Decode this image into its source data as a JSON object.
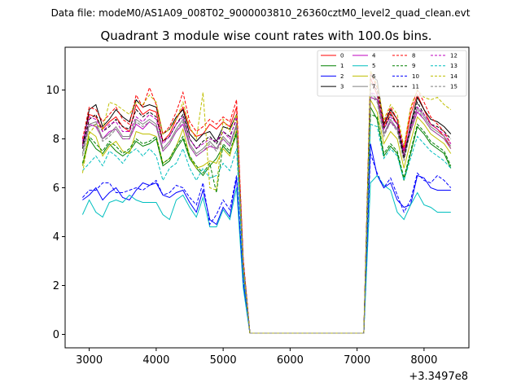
{
  "header": {
    "datafile": "Data file: modeM0/AS1A09_008T02_9000003810_26360cztM0_level2_quad_clean.evt",
    "title": "Quadrant 3 module wise count rates with 100.0s bins.",
    "offset": "+3.3497e8"
  },
  "chart_data": {
    "type": "line",
    "title": "Quadrant 3 module wise count rates with 100.0s bins.",
    "xlabel": "",
    "ylabel": "",
    "x_offset_label": "+3.3497e8",
    "xlim": [
      2640,
      8670
    ],
    "ylim": [
      -0.55,
      11.75
    ],
    "xticks": [
      3000,
      4000,
      5000,
      6000,
      7000,
      8000
    ],
    "yticks": [
      0,
      2,
      4,
      6,
      8,
      10
    ],
    "grid": false,
    "legend": "top-right",
    "x": [
      2900,
      3000,
      3100,
      3200,
      3300,
      3400,
      3500,
      3600,
      3700,
      3800,
      3900,
      4000,
      4100,
      4200,
      4300,
      4400,
      4500,
      4600,
      4700,
      4800,
      4900,
      5000,
      5100,
      5200,
      5300,
      5400,
      5500,
      5600,
      5700,
      5800,
      5900,
      6000,
      6100,
      6200,
      6300,
      6400,
      6500,
      6600,
      6700,
      6800,
      6900,
      7000,
      7100,
      7200,
      7300,
      7400,
      7500,
      7600,
      7700,
      7800,
      7900,
      8000,
      8100,
      8200,
      8300,
      8400
    ],
    "series": [
      {
        "name": "0",
        "color": "#ff0000",
        "dash": false,
        "values": [
          7.8,
          9.0,
          8.9,
          8.4,
          8.7,
          8.9,
          8.5,
          8.3,
          9.4,
          9.0,
          9.2,
          9.1,
          7.9,
          8.2,
          8.8,
          9.3,
          8.4,
          8.1,
          8.2,
          8.6,
          8.4,
          8.7,
          8.5,
          9.3,
          3.0,
          0.05,
          0.05,
          0.05,
          0.05,
          0.05,
          0.05,
          0.05,
          0.05,
          0.05,
          0.05,
          0.05,
          0.05,
          0.05,
          0.05,
          0.05,
          0.05,
          0.05,
          0.05,
          10.5,
          9.8,
          8.5,
          9.1,
          8.6,
          7.5,
          9.0,
          9.8,
          9.2,
          8.6,
          8.4,
          8.1,
          7.6
        ]
      },
      {
        "name": "1",
        "color": "#008000",
        "dash": false,
        "values": [
          6.9,
          8.0,
          7.6,
          7.4,
          7.8,
          7.5,
          7.3,
          7.5,
          7.9,
          7.7,
          7.8,
          8.0,
          6.9,
          7.1,
          7.6,
          8.0,
          7.2,
          6.8,
          6.5,
          6.9,
          7.2,
          7.7,
          7.4,
          8.2,
          2.6,
          0.05,
          0.05,
          0.05,
          0.05,
          0.05,
          0.05,
          0.05,
          0.05,
          0.05,
          0.05,
          0.05,
          0.05,
          0.05,
          0.05,
          0.05,
          0.05,
          0.05,
          0.05,
          9.3,
          8.8,
          7.3,
          7.7,
          7.4,
          6.3,
          7.4,
          8.5,
          8.2,
          7.8,
          7.6,
          7.4,
          6.8
        ]
      },
      {
        "name": "2",
        "color": "#0000ff",
        "dash": false,
        "values": [
          5.5,
          5.7,
          6.0,
          5.5,
          5.8,
          6.0,
          5.6,
          5.5,
          5.9,
          6.2,
          6.1,
          6.2,
          5.7,
          5.6,
          5.8,
          5.9,
          5.4,
          5.0,
          5.9,
          4.7,
          4.5,
          5.2,
          4.8,
          6.4,
          2.1,
          0.05,
          0.05,
          0.05,
          0.05,
          0.05,
          0.05,
          0.05,
          0.05,
          0.05,
          0.05,
          0.05,
          0.05,
          0.05,
          0.05,
          0.05,
          0.05,
          0.05,
          0.05,
          7.8,
          6.5,
          6.0,
          6.2,
          5.5,
          5.2,
          5.3,
          6.5,
          6.4,
          6.0,
          5.9,
          5.9,
          5.9
        ]
      },
      {
        "name": "3",
        "color": "#000000",
        "dash": false,
        "values": [
          7.7,
          9.2,
          9.4,
          8.5,
          8.8,
          9.2,
          8.9,
          8.7,
          9.6,
          9.3,
          9.4,
          9.3,
          8.2,
          8.4,
          8.9,
          9.2,
          8.2,
          7.9,
          8.2,
          8.3,
          7.9,
          8.5,
          8.4,
          9.0,
          3.0,
          0.05,
          0.05,
          0.05,
          0.05,
          0.05,
          0.05,
          0.05,
          0.05,
          0.05,
          0.05,
          0.05,
          0.05,
          0.05,
          0.05,
          0.05,
          0.05,
          0.05,
          0.05,
          10.6,
          10.4,
          8.6,
          9.2,
          8.8,
          7.3,
          8.6,
          9.7,
          9.2,
          8.8,
          8.7,
          8.5,
          8.2
        ]
      },
      {
        "name": "4",
        "color": "#bf00bf",
        "dash": false,
        "values": [
          7.7,
          8.6,
          8.5,
          8.0,
          8.3,
          8.4,
          8.0,
          8.0,
          8.6,
          8.4,
          8.7,
          8.5,
          7.5,
          7.8,
          8.3,
          8.6,
          7.7,
          7.3,
          7.5,
          7.7,
          7.6,
          8.0,
          7.7,
          8.6,
          2.9,
          0.05,
          0.05,
          0.05,
          0.05,
          0.05,
          0.05,
          0.05,
          0.05,
          0.05,
          0.05,
          0.05,
          0.05,
          0.05,
          0.05,
          0.05,
          0.05,
          0.05,
          0.05,
          9.7,
          9.6,
          8.2,
          8.7,
          8.4,
          7.3,
          8.3,
          9.1,
          8.8,
          8.4,
          8.2,
          8.0,
          7.6
        ]
      },
      {
        "name": "5",
        "color": "#00bfbf",
        "dash": false,
        "values": [
          4.9,
          5.5,
          5.0,
          4.8,
          5.4,
          5.5,
          5.4,
          5.7,
          5.5,
          5.4,
          5.4,
          5.4,
          4.9,
          4.7,
          5.5,
          5.7,
          5.2,
          4.8,
          5.6,
          4.4,
          4.4,
          5.1,
          4.7,
          6.0,
          1.9,
          0.05,
          0.05,
          0.05,
          0.05,
          0.05,
          0.05,
          0.05,
          0.05,
          0.05,
          0.05,
          0.05,
          0.05,
          0.05,
          0.05,
          0.05,
          0.05,
          0.05,
          0.05,
          6.2,
          6.5,
          6.1,
          5.9,
          5.0,
          4.7,
          5.3,
          5.8,
          5.3,
          5.2,
          5.0,
          5.0,
          5.0
        ]
      },
      {
        "name": "6",
        "color": "#bfbf00",
        "dash": false,
        "values": [
          6.9,
          8.3,
          8.1,
          7.3,
          7.7,
          7.9,
          7.5,
          7.4,
          8.3,
          8.2,
          8.2,
          8.1,
          7.0,
          7.2,
          7.7,
          8.4,
          7.3,
          6.8,
          6.9,
          7.1,
          7.0,
          7.6,
          7.3,
          8.4,
          2.7,
          0.05,
          0.05,
          0.05,
          0.05,
          0.05,
          0.05,
          0.05,
          0.05,
          0.05,
          0.05,
          0.05,
          0.05,
          0.05,
          0.05,
          0.05,
          0.05,
          0.05,
          0.05,
          9.6,
          9.1,
          7.8,
          8.3,
          8.0,
          6.8,
          7.9,
          8.9,
          8.6,
          8.2,
          8.0,
          7.8,
          7.4
        ]
      },
      {
        "name": "7",
        "color": "#808080",
        "dash": false,
        "values": [
          7.4,
          8.6,
          8.7,
          8.0,
          8.2,
          8.5,
          8.1,
          8.1,
          8.8,
          8.6,
          8.8,
          8.6,
          7.6,
          7.9,
          8.4,
          8.8,
          7.8,
          7.4,
          7.6,
          7.9,
          7.6,
          8.1,
          7.8,
          8.6,
          2.9,
          0.05,
          0.05,
          0.05,
          0.05,
          0.05,
          0.05,
          0.05,
          0.05,
          0.05,
          0.05,
          0.05,
          0.05,
          0.05,
          0.05,
          0.05,
          0.05,
          0.05,
          0.05,
          9.9,
          9.6,
          8.2,
          8.8,
          8.4,
          7.2,
          8.4,
          9.3,
          8.9,
          8.5,
          8.3,
          8.1,
          7.7
        ]
      },
      {
        "name": "8",
        "color": "#ff0000",
        "dash": true,
        "values": [
          8.0,
          9.3,
          9.2,
          8.7,
          9.0,
          9.3,
          8.8,
          8.6,
          9.8,
          9.3,
          10.1,
          9.4,
          8.2,
          8.5,
          9.1,
          9.9,
          8.7,
          8.3,
          8.5,
          8.8,
          8.6,
          8.9,
          8.7,
          9.6,
          3.1,
          0.05,
          0.05,
          0.05,
          0.05,
          0.05,
          0.05,
          0.05,
          0.05,
          0.05,
          0.05,
          0.05,
          0.05,
          0.05,
          0.05,
          0.05,
          0.05,
          0.05,
          0.05,
          10.7,
          10.1,
          8.7,
          9.3,
          8.8,
          7.6,
          9.2,
          10.0,
          9.5,
          8.9,
          8.6,
          8.3,
          7.8
        ]
      },
      {
        "name": "9",
        "color": "#008000",
        "dash": true,
        "values": [
          7.0,
          8.1,
          7.8,
          7.5,
          7.9,
          7.7,
          7.4,
          7.6,
          8.0,
          7.8,
          7.9,
          8.1,
          7.0,
          7.2,
          7.7,
          8.1,
          7.3,
          6.9,
          6.6,
          7.0,
          5.8,
          7.8,
          7.5,
          8.3,
          2.6,
          0.05,
          0.05,
          0.05,
          0.05,
          0.05,
          0.05,
          0.05,
          0.05,
          0.05,
          0.05,
          0.05,
          0.05,
          0.05,
          0.05,
          0.05,
          0.05,
          0.05,
          0.05,
          9.0,
          8.9,
          7.4,
          7.8,
          7.5,
          6.4,
          7.5,
          8.6,
          8.3,
          7.9,
          7.7,
          7.5,
          6.9
        ]
      },
      {
        "name": "10",
        "color": "#0000ff",
        "dash": true,
        "values": [
          5.6,
          5.9,
          5.9,
          6.2,
          6.2,
          5.8,
          5.8,
          5.9,
          6.0,
          5.9,
          6.1,
          6.3,
          5.7,
          5.8,
          6.1,
          6.0,
          5.6,
          5.3,
          6.2,
          4.5,
          4.9,
          5.5,
          5.1,
          6.5,
          2.2,
          0.05,
          0.05,
          0.05,
          0.05,
          0.05,
          0.05,
          0.05,
          0.05,
          0.05,
          0.05,
          0.05,
          0.05,
          0.05,
          0.05,
          0.05,
          0.05,
          0.05,
          0.05,
          7.4,
          6.6,
          6.0,
          6.4,
          5.7,
          5.0,
          5.5,
          6.6,
          6.3,
          6.2,
          6.5,
          6.3,
          6.0
        ]
      },
      {
        "name": "11",
        "color": "#000000",
        "dash": true,
        "values": [
          7.6,
          8.8,
          9.0,
          8.3,
          8.5,
          8.8,
          8.5,
          8.4,
          9.2,
          8.9,
          9.1,
          8.9,
          7.9,
          8.1,
          8.6,
          9.0,
          8.0,
          7.6,
          7.9,
          8.1,
          7.8,
          8.3,
          8.1,
          8.8,
          3.0,
          0.05,
          0.05,
          0.05,
          0.05,
          0.05,
          0.05,
          0.05,
          0.05,
          0.05,
          0.05,
          0.05,
          0.05,
          0.05,
          0.05,
          0.05,
          0.05,
          0.05,
          0.05,
          10.3,
          10.0,
          8.4,
          9.0,
          8.6,
          7.2,
          8.5,
          9.5,
          9.0,
          8.6,
          8.5,
          8.3,
          8.0
        ]
      },
      {
        "name": "12",
        "color": "#bf00bf",
        "dash": true,
        "values": [
          7.9,
          8.9,
          8.8,
          8.3,
          8.6,
          8.7,
          8.3,
          8.3,
          8.9,
          8.7,
          9.0,
          8.8,
          7.8,
          8.1,
          8.6,
          8.9,
          8.0,
          7.6,
          7.8,
          8.0,
          7.9,
          8.3,
          8.0,
          8.9,
          3.0,
          0.05,
          0.05,
          0.05,
          0.05,
          0.05,
          0.05,
          0.05,
          0.05,
          0.05,
          0.05,
          0.05,
          0.05,
          0.05,
          0.05,
          0.05,
          0.05,
          0.05,
          0.05,
          9.9,
          9.8,
          8.4,
          8.9,
          8.6,
          7.5,
          8.5,
          9.3,
          9.0,
          8.6,
          8.4,
          8.2,
          7.8
        ]
      },
      {
        "name": "13",
        "color": "#00bfbf",
        "dash": true,
        "values": [
          6.7,
          7.0,
          7.3,
          6.9,
          7.5,
          7.3,
          7.0,
          7.4,
          7.6,
          7.3,
          7.6,
          7.3,
          6.3,
          6.8,
          7.0,
          7.6,
          6.8,
          6.3,
          6.8,
          6.4,
          6.5,
          7.0,
          6.7,
          7.6,
          2.5,
          0.05,
          0.05,
          0.05,
          0.05,
          0.05,
          0.05,
          0.05,
          0.05,
          0.05,
          0.05,
          0.05,
          0.05,
          0.05,
          0.05,
          0.05,
          0.05,
          0.05,
          0.05,
          8.6,
          8.5,
          7.2,
          7.6,
          7.3,
          6.3,
          7.2,
          8.1,
          7.8,
          7.5,
          7.3,
          7.1,
          6.8
        ]
      },
      {
        "name": "14",
        "color": "#bfbf00",
        "dash": true,
        "values": [
          6.6,
          8.2,
          8.6,
          8.4,
          9.5,
          9.4,
          9.2,
          9.0,
          9.5,
          9.4,
          9.8,
          9.5,
          8.2,
          8.4,
          8.8,
          9.5,
          8.5,
          8.0,
          9.9,
          6.0,
          5.9,
          8.8,
          8.3,
          9.0,
          2.8,
          0.05,
          0.05,
          0.05,
          0.05,
          0.05,
          0.05,
          0.05,
          0.05,
          0.05,
          0.05,
          0.05,
          0.05,
          0.05,
          0.05,
          0.05,
          0.05,
          0.05,
          0.05,
          10.8,
          10.2,
          8.8,
          9.4,
          9.0,
          7.7,
          9.3,
          10.0,
          9.7,
          9.6,
          9.7,
          9.4,
          9.2
        ]
      },
      {
        "name": "15",
        "color": "#808080",
        "dash": true,
        "values": [
          7.3,
          8.5,
          8.6,
          7.9,
          8.1,
          8.4,
          8.0,
          8.0,
          8.7,
          8.5,
          8.7,
          8.5,
          7.5,
          7.8,
          8.3,
          8.7,
          7.7,
          7.3,
          7.5,
          7.8,
          7.5,
          8.0,
          7.7,
          8.5,
          2.9,
          0.05,
          0.05,
          0.05,
          0.05,
          0.05,
          0.05,
          0.05,
          0.05,
          0.05,
          0.05,
          0.05,
          0.05,
          0.05,
          0.05,
          0.05,
          0.05,
          0.05,
          0.05,
          9.8,
          9.5,
          8.1,
          8.7,
          8.3,
          7.1,
          8.3,
          9.2,
          8.8,
          8.4,
          8.2,
          8.0,
          7.6
        ]
      }
    ]
  }
}
